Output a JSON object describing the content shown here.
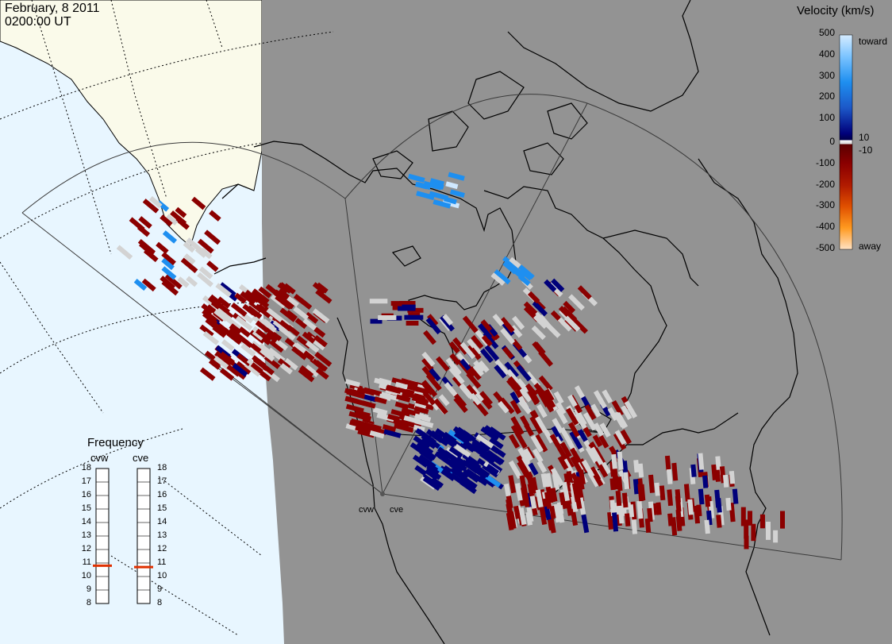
{
  "header": {
    "date": "February, 8 2011",
    "time": "0200:00 UT"
  },
  "colorbar": {
    "title": "Velocity (km/s)",
    "toward_label": "toward",
    "away_label": "away",
    "ticks": [
      "500",
      "400",
      "300",
      "200",
      "100",
      "0",
      "-100",
      "-200",
      "-300",
      "-400",
      "-500"
    ],
    "inner_pos": "10",
    "inner_neg": "-10",
    "colors": {
      "toward_light": "#cfe8ff",
      "toward_mid": "#1e8ff0",
      "toward_dark": "#00007a",
      "near_zero": "#d3d3d3",
      "away_dark": "#8b0000",
      "away_mid": "#e06000",
      "away_light": "#ffd9b3"
    }
  },
  "frequency": {
    "title": "Frequency",
    "radars": [
      "cvw",
      "cve"
    ],
    "scale": [
      "18",
      "17",
      "16",
      "15",
      "14",
      "13",
      "12",
      "11",
      "10",
      "9",
      "8"
    ],
    "cvw_value_mhz": 10.8,
    "cve_value_mhz": 10.7
  },
  "sites": {
    "cvw": "cvw",
    "cve": "cve"
  },
  "colors": {
    "night": "#939393",
    "ocean_day": "#e8f6ff",
    "land_day": "#fafaea",
    "coast": "#000000",
    "fov": "#404040",
    "marker": "#e03000"
  }
}
